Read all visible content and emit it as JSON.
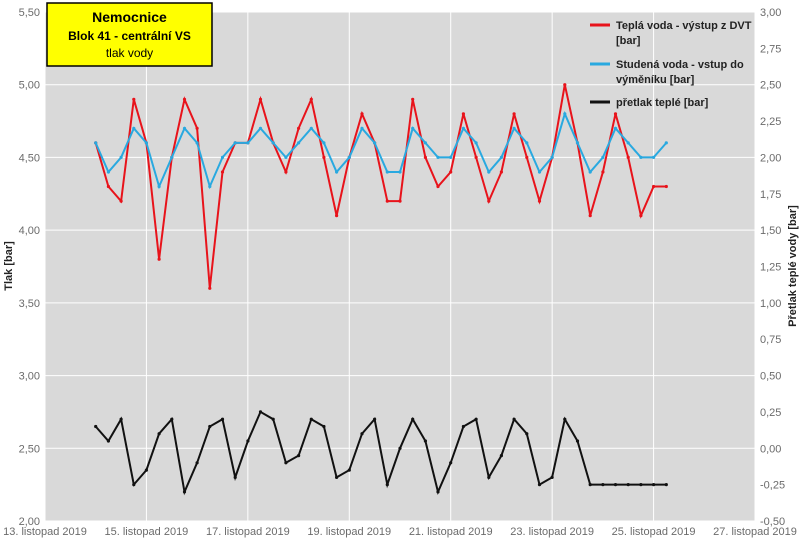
{
  "chart_data": {
    "type": "line",
    "title": [
      "Nemocnice",
      "Blok 41 - centrální VS",
      "tlak vody"
    ],
    "title_box_color": "#FFFF00",
    "ylabel_left": "Tlak [bar]",
    "ylabel_right": "Přetlak teplé vody [bar]",
    "ylim_left": [
      2.0,
      5.5
    ],
    "ylim_right": [
      -0.5,
      3.0
    ],
    "yticks_left": [
      "2,00",
      "2,50",
      "3,00",
      "3,50",
      "4,00",
      "4,50",
      "5,00",
      "5,50"
    ],
    "yticks_right": [
      "-0,50",
      "-0,25",
      "0,00",
      "0,25",
      "0,50",
      "0,75",
      "1,00",
      "1,25",
      "1,50",
      "1,75",
      "2,00",
      "2,25",
      "2,50",
      "2,75",
      "3,00"
    ],
    "xticks": [
      "13. listopad 2019",
      "15. listopad 2019",
      "17. listopad 2019",
      "19. listopad 2019",
      "21. listopad 2019",
      "23. listopad 2019",
      "25. listopad 2019",
      "27. listopad 2019"
    ],
    "xlim": [
      "2019-11-13",
      "2019-11-27"
    ],
    "grid": true,
    "plot_background": "#D9D9D9",
    "legend_position": "top-right",
    "series": [
      {
        "name": "Teplá voda - výstup z DVT [bar]",
        "legend_lines": [
          "Teplá voda - výstup z DVT",
          "[bar]"
        ],
        "axis": "left",
        "color": "#E8131B",
        "x": [
          "2019-11-14 00:00",
          "2019-11-14 06:00",
          "2019-11-14 12:00",
          "2019-11-14 18:00",
          "2019-11-15 00:00",
          "2019-11-15 06:00",
          "2019-11-15 12:00",
          "2019-11-15 18:00",
          "2019-11-16 00:00",
          "2019-11-16 06:00",
          "2019-11-16 12:00",
          "2019-11-16 18:00",
          "2019-11-17 00:00",
          "2019-11-17 06:00",
          "2019-11-17 12:00",
          "2019-11-17 18:00",
          "2019-11-18 00:00",
          "2019-11-18 06:00",
          "2019-11-18 12:00",
          "2019-11-18 18:00",
          "2019-11-19 00:00",
          "2019-11-19 06:00",
          "2019-11-19 12:00",
          "2019-11-19 18:00",
          "2019-11-20 00:00",
          "2019-11-20 06:00",
          "2019-11-20 12:00",
          "2019-11-20 18:00",
          "2019-11-21 00:00",
          "2019-11-21 06:00",
          "2019-11-21 12:00",
          "2019-11-21 18:00",
          "2019-11-22 00:00",
          "2019-11-22 06:00",
          "2019-11-22 12:00",
          "2019-11-22 18:00",
          "2019-11-23 00:00",
          "2019-11-23 06:00",
          "2019-11-23 12:00",
          "2019-11-23 18:00",
          "2019-11-24 00:00",
          "2019-11-24 06:00",
          "2019-11-24 12:00",
          "2019-11-24 18:00",
          "2019-11-25 00:00",
          "2019-11-25 06:00"
        ],
        "values": [
          4.6,
          4.3,
          4.2,
          4.9,
          4.6,
          3.8,
          4.5,
          4.9,
          4.7,
          3.6,
          4.4,
          4.6,
          4.6,
          4.9,
          4.6,
          4.4,
          4.7,
          4.9,
          4.5,
          4.1,
          4.5,
          4.8,
          4.6,
          4.2,
          4.2,
          4.9,
          4.5,
          4.3,
          4.4,
          4.8,
          4.5,
          4.2,
          4.4,
          4.8,
          4.5,
          4.2,
          4.5,
          5.0,
          4.6,
          4.1,
          4.4,
          4.8,
          4.5,
          4.1,
          4.3,
          4.3
        ]
      },
      {
        "name": "Studená voda - vstup do výměníku [bar]",
        "legend_lines": [
          "Studená voda - vstup do",
          "výměníku [bar]"
        ],
        "axis": "left",
        "color": "#29A9E0",
        "x": [
          "2019-11-14 00:00",
          "2019-11-14 06:00",
          "2019-11-14 12:00",
          "2019-11-14 18:00",
          "2019-11-15 00:00",
          "2019-11-15 06:00",
          "2019-11-15 12:00",
          "2019-11-15 18:00",
          "2019-11-16 00:00",
          "2019-11-16 06:00",
          "2019-11-16 12:00",
          "2019-11-16 18:00",
          "2019-11-17 00:00",
          "2019-11-17 06:00",
          "2019-11-17 12:00",
          "2019-11-17 18:00",
          "2019-11-18 00:00",
          "2019-11-18 06:00",
          "2019-11-18 12:00",
          "2019-11-18 18:00",
          "2019-11-19 00:00",
          "2019-11-19 06:00",
          "2019-11-19 12:00",
          "2019-11-19 18:00",
          "2019-11-20 00:00",
          "2019-11-20 06:00",
          "2019-11-20 12:00",
          "2019-11-20 18:00",
          "2019-11-21 00:00",
          "2019-11-21 06:00",
          "2019-11-21 12:00",
          "2019-11-21 18:00",
          "2019-11-22 00:00",
          "2019-11-22 06:00",
          "2019-11-22 12:00",
          "2019-11-22 18:00",
          "2019-11-23 00:00",
          "2019-11-23 06:00",
          "2019-11-23 12:00",
          "2019-11-23 18:00",
          "2019-11-24 00:00",
          "2019-11-24 06:00",
          "2019-11-24 12:00",
          "2019-11-24 18:00",
          "2019-11-25 00:00",
          "2019-11-25 06:00"
        ],
        "values": [
          4.6,
          4.4,
          4.5,
          4.7,
          4.6,
          4.3,
          4.5,
          4.7,
          4.6,
          4.3,
          4.5,
          4.6,
          4.6,
          4.7,
          4.6,
          4.5,
          4.6,
          4.7,
          4.6,
          4.4,
          4.5,
          4.7,
          4.6,
          4.4,
          4.4,
          4.7,
          4.6,
          4.5,
          4.5,
          4.7,
          4.6,
          4.4,
          4.5,
          4.7,
          4.6,
          4.4,
          4.5,
          4.8,
          4.6,
          4.4,
          4.5,
          4.7,
          4.6,
          4.5,
          4.5,
          4.6
        ]
      },
      {
        "name": "přetlak teplé [bar]",
        "legend_lines": [
          "přetlak teplé  [bar]"
        ],
        "axis": "right",
        "color": "#111111",
        "x": [
          "2019-11-14 00:00",
          "2019-11-14 06:00",
          "2019-11-14 12:00",
          "2019-11-14 18:00",
          "2019-11-15 00:00",
          "2019-11-15 06:00",
          "2019-11-15 12:00",
          "2019-11-15 18:00",
          "2019-11-16 00:00",
          "2019-11-16 06:00",
          "2019-11-16 12:00",
          "2019-11-16 18:00",
          "2019-11-17 00:00",
          "2019-11-17 06:00",
          "2019-11-17 12:00",
          "2019-11-17 18:00",
          "2019-11-18 00:00",
          "2019-11-18 06:00",
          "2019-11-18 12:00",
          "2019-11-18 18:00",
          "2019-11-19 00:00",
          "2019-11-19 06:00",
          "2019-11-19 12:00",
          "2019-11-19 18:00",
          "2019-11-20 00:00",
          "2019-11-20 06:00",
          "2019-11-20 12:00",
          "2019-11-20 18:00",
          "2019-11-21 00:00",
          "2019-11-21 06:00",
          "2019-11-21 12:00",
          "2019-11-21 18:00",
          "2019-11-22 00:00",
          "2019-11-22 06:00",
          "2019-11-22 12:00",
          "2019-11-22 18:00",
          "2019-11-23 00:00",
          "2019-11-23 06:00",
          "2019-11-23 12:00",
          "2019-11-23 18:00",
          "2019-11-24 00:00",
          "2019-11-24 06:00",
          "2019-11-24 12:00",
          "2019-11-24 18:00",
          "2019-11-25 00:00",
          "2019-11-25 06:00"
        ],
        "values": [
          0.15,
          0.05,
          0.2,
          -0.25,
          -0.15,
          0.1,
          0.2,
          -0.3,
          -0.1,
          0.15,
          0.2,
          -0.2,
          0.05,
          0.25,
          0.2,
          -0.1,
          -0.05,
          0.2,
          0.15,
          -0.2,
          -0.15,
          0.1,
          0.2,
          -0.25,
          0.0,
          0.2,
          0.05,
          -0.3,
          -0.1,
          0.15,
          0.2,
          -0.2,
          -0.05,
          0.2,
          0.1,
          -0.25,
          -0.2,
          0.2,
          0.05,
          -0.25,
          -0.25,
          -0.25,
          -0.25,
          -0.25,
          -0.25,
          -0.25
        ]
      }
    ]
  }
}
